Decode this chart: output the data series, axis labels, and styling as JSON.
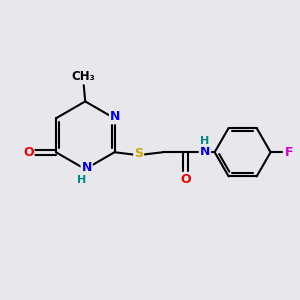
{
  "bg_color": "#e8e8ec",
  "atom_colors": {
    "C": "#000000",
    "N": "#0000ee",
    "O": "#ee0000",
    "S": "#ccaa00",
    "F": "#cc00cc",
    "H": "#008888"
  },
  "bond_color": "#000000",
  "bond_width": 1.5,
  "figsize": [
    3.0,
    3.0
  ],
  "dpi": 100,
  "xlim": [
    0,
    10
  ],
  "ylim": [
    0,
    10
  ]
}
